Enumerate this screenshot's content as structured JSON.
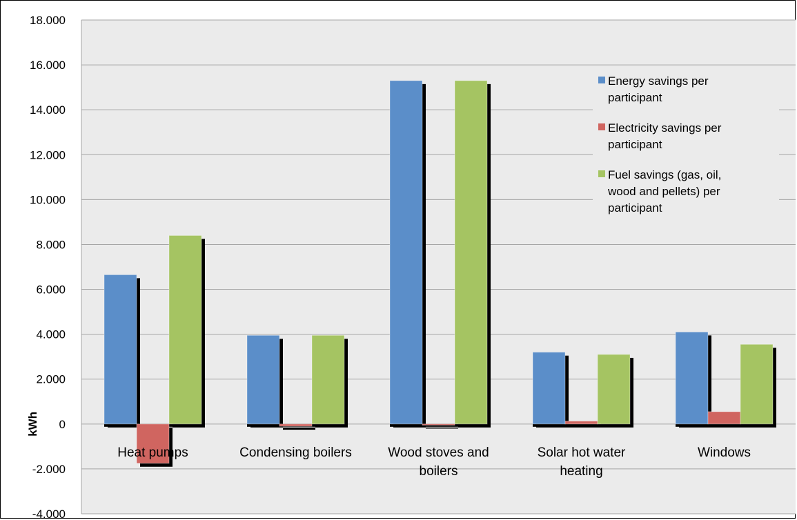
{
  "chart_data": {
    "type": "bar",
    "title": "",
    "xlabel": "",
    "ylabel": "kWh",
    "ylim": [
      -4000,
      18000
    ],
    "ytick_step": 2000,
    "ytick_labels": [
      "-4.000",
      "-2.000",
      "0",
      "2.000",
      "4.000",
      "6.000",
      "8.000",
      "10.000",
      "12.000",
      "14.000",
      "16.000",
      "18.000"
    ],
    "grid": true,
    "legend_position": "top-right",
    "categories": [
      [
        "Heat pumps"
      ],
      [
        "Condensing boilers"
      ],
      [
        "Wood stoves and",
        "boilers"
      ],
      [
        "Solar hot water",
        "heating"
      ],
      [
        "Windows"
      ]
    ],
    "series": [
      {
        "name_lines": [
          "Energy savings per",
          "participant"
        ],
        "color": "#5b8ec9",
        "values": [
          6650,
          3950,
          15300,
          3200,
          4100
        ]
      },
      {
        "name_lines": [
          "Electricity savings per",
          "participant"
        ],
        "color": "#d06560",
        "values": [
          -1750,
          -100,
          -50,
          130,
          550
        ]
      },
      {
        "name_lines": [
          "Fuel savings (gas, oil,",
          "wood and pellets) per",
          "participant"
        ],
        "color": "#a5c462",
        "values": [
          8400,
          3950,
          15300,
          3100,
          3550
        ]
      }
    ],
    "colors": {
      "plot_background": "#ebebeb",
      "gridline": "#a6a6a6",
      "shadow": "#000000"
    }
  }
}
